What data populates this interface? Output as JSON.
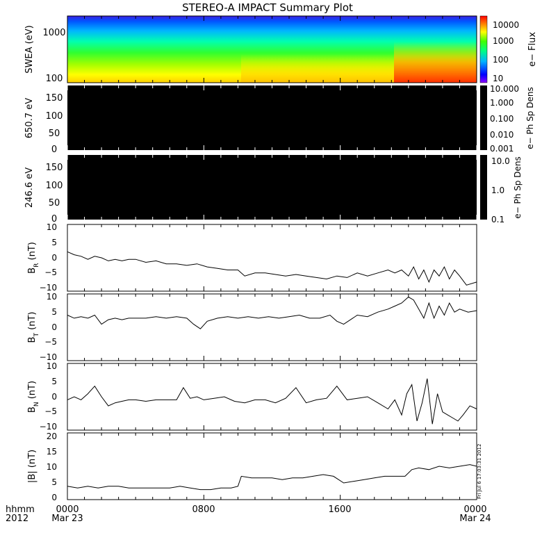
{
  "title": "STEREO-A IMPACT Summary Plot",
  "side_stamp": "Fri Jul 6 17:03:31 2012",
  "x_axis": {
    "row_labels": [
      "hhmm",
      "2012"
    ],
    "ticks": [
      {
        "time": "0000",
        "date": "Mar 23"
      },
      {
        "time": "0800",
        "date": ""
      },
      {
        "time": "1600",
        "date": ""
      },
      {
        "time": "0000",
        "date": "Mar 24"
      }
    ]
  },
  "panels": {
    "swea": {
      "ylabel": "SWEA (eV)",
      "yticks": [
        "1000",
        "100"
      ],
      "colorbar_label": "e− Flux",
      "colorbar_ticks": [
        "10000",
        "1000",
        "100",
        "10"
      ]
    },
    "pad650": {
      "ylabel": "650.7 eV",
      "yticks": [
        "150",
        "100",
        "50",
        "0"
      ],
      "colorbar_label": "e− Ph Sp Dens",
      "colorbar_ticks": [
        "10.000",
        "1.000",
        "0.100",
        "0.010",
        "0.001"
      ]
    },
    "pad246": {
      "ylabel": "246.6 eV",
      "yticks": [
        "150",
        "100",
        "50",
        "0"
      ],
      "colorbar_label": "e− Ph Sp Dens",
      "colorbar_ticks": [
        "10.0",
        "1.0",
        "0.1"
      ]
    },
    "br": {
      "ylabel_main": "B",
      "ylabel_sub": "R",
      "ylabel_unit": " (nT)",
      "yticks": [
        "10",
        "5",
        "0",
        "−5",
        "−10"
      ]
    },
    "bt": {
      "ylabel_main": "B",
      "ylabel_sub": "T",
      "ylabel_unit": " (nT)",
      "yticks": [
        "10",
        "5",
        "0",
        "−5",
        "−10"
      ]
    },
    "bn": {
      "ylabel_main": "B",
      "ylabel_sub": "N",
      "ylabel_unit": " (nT)",
      "yticks": [
        "10",
        "5",
        "0",
        "−5",
        "−10"
      ]
    },
    "bmag": {
      "ylabel": "|B| (nT)",
      "yticks": [
        "20",
        "15",
        "10",
        "5",
        "0"
      ]
    }
  },
  "chart_data": [
    {
      "type": "heatmap",
      "name": "SWEA",
      "ylabel": "SWEA (eV)",
      "ylim": [
        90,
        2000
      ],
      "log_y": true,
      "colorbar": {
        "label": "e− Flux",
        "range": [
          10,
          20000
        ],
        "log": true
      },
      "description": "Electron energy spectrogram; enhanced low-energy flux after ~20:00"
    },
    {
      "type": "heatmap",
      "name": "650.7 eV pitch angle",
      "ylim": [
        0,
        180
      ],
      "colorbar": {
        "label": "e− Ph Sp Dens",
        "range": [
          0.001,
          10
        ]
      },
      "values": "no data (black)"
    },
    {
      "type": "heatmap",
      "name": "246.6 eV pitch angle",
      "ylim": [
        0,
        180
      ],
      "colorbar": {
        "label": "e− Ph Sp Dens",
        "range": [
          0.1,
          10
        ]
      },
      "values": "no data (black)"
    },
    {
      "type": "line",
      "ylabel": "BR (nT)",
      "ylim": [
        -11,
        11
      ],
      "x_hours": [
        0,
        0.4,
        0.8,
        1.2,
        1.6,
        2,
        2.4,
        2.8,
        3.2,
        3.6,
        4,
        4.6,
        5.2,
        5.8,
        6.4,
        7,
        7.6,
        8.2,
        8.8,
        9.4,
        10,
        10.4,
        11,
        11.6,
        12.2,
        12.8,
        13.4,
        14,
        14.6,
        15.2,
        15.8,
        16.4,
        17,
        17.6,
        18.2,
        18.8,
        19.2,
        19.6,
        20,
        20.3,
        20.6,
        20.9,
        21.2,
        21.5,
        21.8,
        22.1,
        22.4,
        22.7,
        23,
        23.4,
        24
      ],
      "values": [
        2,
        1,
        0.5,
        -0.5,
        0.5,
        0,
        -1,
        -0.5,
        -1,
        -0.5,
        -0.5,
        -1.5,
        -1,
        -2,
        -2,
        -2.5,
        -2,
        -3,
        -3.5,
        -4,
        -4,
        -6,
        -5,
        -5,
        -5.5,
        -6,
        -5.5,
        -6,
        -6.5,
        -7,
        -6,
        -6.5,
        -5,
        -6,
        -5,
        -4,
        -5,
        -4,
        -6,
        -3,
        -7,
        -4,
        -8,
        -4,
        -6,
        -3,
        -7,
        -4,
        -6,
        -9,
        -8
      ]
    },
    {
      "type": "line",
      "ylabel": "BT (nT)",
      "ylim": [
        -11,
        11
      ],
      "x_hours": [
        0,
        0.4,
        0.8,
        1.2,
        1.6,
        2,
        2.4,
        2.8,
        3.2,
        3.6,
        4,
        4.6,
        5.2,
        5.8,
        6.4,
        7,
        7.4,
        7.8,
        8.2,
        8.8,
        9.4,
        10,
        10.6,
        11.2,
        11.8,
        12.4,
        13,
        13.6,
        14.2,
        14.8,
        15.4,
        15.8,
        16.2,
        16.6,
        17,
        17.6,
        18.2,
        18.8,
        19.2,
        19.6,
        20,
        20.3,
        20.6,
        20.9,
        21.2,
        21.5,
        21.8,
        22.1,
        22.4,
        22.7,
        23,
        23.5,
        24
      ],
      "values": [
        4,
        3,
        3.5,
        3,
        4,
        1,
        2.5,
        3,
        2.5,
        3,
        3,
        3,
        3.5,
        3,
        3.5,
        3,
        1,
        -0.5,
        2,
        3,
        3.5,
        3,
        3.5,
        3,
        3.5,
        3,
        3.5,
        4,
        3,
        3,
        4,
        2,
        1,
        2.5,
        4,
        3.5,
        5,
        6,
        7,
        8,
        10,
        9,
        6,
        3,
        8,
        3,
        7,
        4,
        8,
        5,
        6,
        5,
        5.5
      ]
    },
    {
      "type": "line",
      "ylabel": "BN (nT)",
      "ylim": [
        -11,
        11
      ],
      "x_hours": [
        0,
        0.4,
        0.8,
        1.2,
        1.6,
        2,
        2.4,
        2.8,
        3.2,
        3.6,
        4,
        4.6,
        5.2,
        5.8,
        6.4,
        6.8,
        7.2,
        7.6,
        8,
        8.6,
        9.2,
        9.8,
        10.4,
        11,
        11.6,
        12.2,
        12.8,
        13.4,
        14,
        14.6,
        15.2,
        15.8,
        16.4,
        17,
        17.6,
        18.2,
        18.8,
        19.2,
        19.6,
        19.9,
        20.2,
        20.5,
        20.8,
        21.1,
        21.4,
        21.7,
        22,
        22.3,
        22.6,
        22.9,
        23.2,
        23.6,
        24
      ],
      "values": [
        -1,
        0,
        -1,
        1,
        3.5,
        0,
        -3,
        -2,
        -1.5,
        -1,
        -1,
        -1.5,
        -1,
        -1,
        -1,
        3,
        -0.5,
        0,
        -1,
        -0.5,
        0,
        -1.5,
        -2,
        -1,
        -1,
        -2,
        -0.5,
        3,
        -2,
        -1,
        -0.5,
        3.5,
        -1,
        -0.5,
        0,
        -2,
        -4,
        -1,
        -6,
        1,
        4,
        -8,
        -2,
        6,
        -9,
        1,
        -5,
        -6,
        -7,
        -8,
        -6,
        -3,
        -4
      ]
    },
    {
      "type": "line",
      "ylabel": "|B| (nT)",
      "ylim": [
        0,
        20
      ],
      "x_hours": [
        0,
        0.6,
        1.2,
        1.8,
        2.4,
        3,
        3.6,
        4.2,
        4.8,
        5.4,
        6,
        6.6,
        7.2,
        7.8,
        8.4,
        9,
        9.6,
        10,
        10.2,
        10.8,
        11.4,
        12,
        12.6,
        13.2,
        13.8,
        14.4,
        15,
        15.6,
        16.2,
        16.8,
        17.4,
        18,
        18.6,
        19.2,
        19.8,
        20.2,
        20.6,
        21.2,
        21.8,
        22.4,
        23,
        23.6,
        24
      ],
      "values": [
        4,
        3.5,
        4,
        3.5,
        4,
        4,
        3.5,
        3.5,
        3.5,
        3.5,
        3.5,
        4,
        3.5,
        3,
        3,
        3.5,
        3.5,
        4,
        7,
        6.5,
        6.5,
        6.5,
        6,
        6.5,
        6.5,
        7,
        7.5,
        7,
        5,
        5.5,
        6,
        6.5,
        7,
        7,
        7,
        9,
        9.5,
        9,
        10,
        9.5,
        10,
        10.5,
        10
      ]
    }
  ]
}
